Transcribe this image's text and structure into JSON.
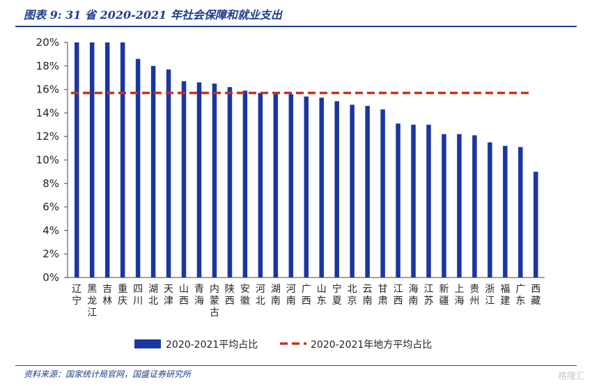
{
  "header": {
    "title": "图表 9:  31 省 2020-2021 年社会保障和就业支出"
  },
  "footer": {
    "source": "资料来源：国家统计局官网，国盛证券研究所",
    "watermark": "格隆汇"
  },
  "chart_data": {
    "type": "bar",
    "title": "图表 9:  31 省 2020-2021 年社会保障和就业支出",
    "xlabel": "",
    "ylabel": "",
    "ylim": [
      0,
      20
    ],
    "yticks": [
      "0%",
      "2%",
      "4%",
      "6%",
      "8%",
      "10%",
      "12%",
      "14%",
      "16%",
      "18%",
      "20%"
    ],
    "grid": false,
    "legend_position": "bottom",
    "categories": [
      "辽宁",
      "黑龙江",
      "吉林",
      "重庆",
      "四川",
      "湖北",
      "天津",
      "山西",
      "青海",
      "内蒙古",
      "陕西",
      "安徽",
      "河北",
      "湖南",
      "河南",
      "广西",
      "山东",
      "宁夏",
      "北京",
      "云南",
      "甘肃",
      "江西",
      "海南",
      "江苏",
      "新疆",
      "上海",
      "贵州",
      "浙江",
      "福建",
      "广东",
      "西藏"
    ],
    "series": [
      {
        "name": "2020-2021平均占比",
        "type": "bar",
        "color": "#1a37a0",
        "values": [
          20.0,
          20.0,
          20.0,
          20.0,
          18.6,
          18.0,
          17.7,
          16.7,
          16.6,
          16.5,
          16.2,
          15.9,
          15.7,
          15.6,
          15.6,
          15.4,
          15.3,
          15.0,
          14.7,
          14.6,
          14.3,
          13.1,
          13.0,
          13.0,
          12.2,
          12.2,
          12.1,
          11.5,
          11.2,
          11.1,
          9.0
        ]
      },
      {
        "name": "2020-2021年地方平均占比",
        "type": "line",
        "style": "dashed",
        "color": "#c0361a",
        "value": 15.7
      }
    ]
  }
}
